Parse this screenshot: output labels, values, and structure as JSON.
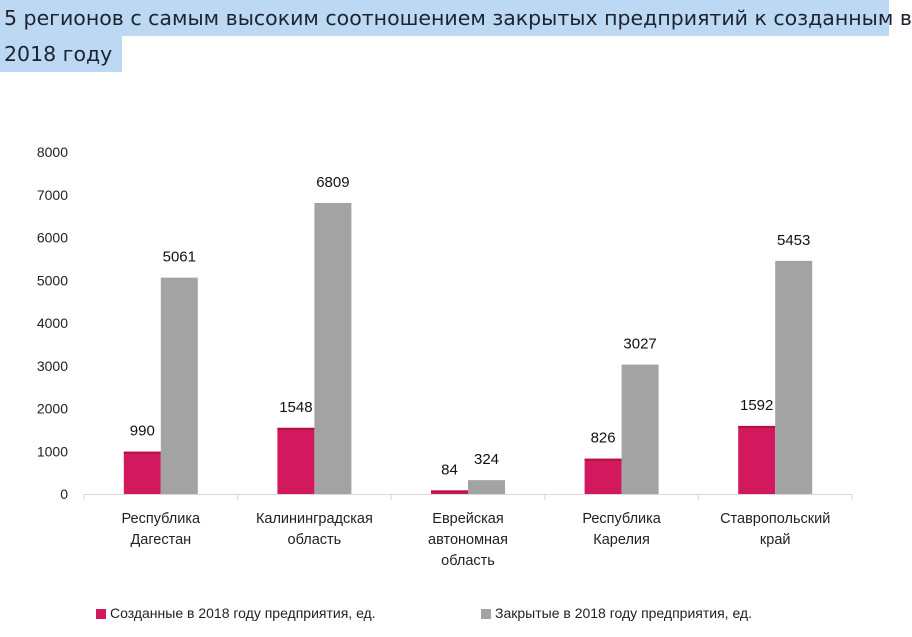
{
  "chart_data": {
    "type": "bar",
    "title": "5 регионов с самым высоким соотношением закрытых предприятий к созданным в 2018 году",
    "title_lines": [
      "5 регионов с самым высоким соотношением закрытых предприятий к созданным в",
      "2018 году"
    ],
    "categories": [
      [
        "Республика",
        "Дагестан"
      ],
      [
        "Калининградская",
        "область"
      ],
      [
        "Еврейская",
        "автономная",
        "область"
      ],
      [
        "Республика",
        "Карелия"
      ],
      [
        "Ставропольский",
        "край"
      ]
    ],
    "series": [
      {
        "name": "Созданные в 2018 году предприятия, ед.",
        "color": "#d2195d",
        "values": [
          990,
          1548,
          84,
          826,
          1592
        ]
      },
      {
        "name": "Закрытые в 2018 году предприятия, ед.",
        "color": "#a3a3a3",
        "values": [
          5061,
          6809,
          324,
          3027,
          5453
        ]
      }
    ],
    "ylim": [
      0,
      8000
    ],
    "yticks": [
      0,
      1000,
      2000,
      3000,
      4000,
      5000,
      6000,
      7000,
      8000
    ],
    "xlabel": "",
    "ylabel": "",
    "grid": false,
    "legend_position": "bottom"
  }
}
